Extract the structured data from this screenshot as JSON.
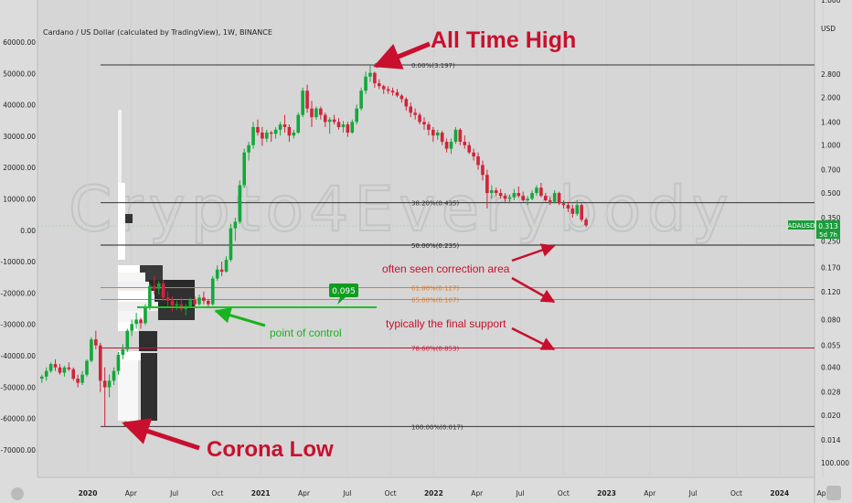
{
  "chart_data": {
    "type": "candlestick",
    "title": "Cardano / US Dollar (calculated by TradingView), 1W, BINANCE",
    "symbol": "ADAUSD",
    "last_price": "0.313",
    "countdown": "5d 7h",
    "price_axis": {
      "unit": "USD",
      "scale": "log",
      "ticks": [
        "1.000",
        "USD",
        "2.800",
        "2.000",
        "1.400",
        "1.000",
        "0.700",
        "0.500",
        "0.350",
        "0.250",
        "0.170",
        "0.120",
        "0.080",
        "0.055",
        "0.040",
        "0.028",
        "0.020",
        "0.014",
        "100.000"
      ],
      "tick_values": [
        null,
        null,
        2.8,
        2.0,
        1.4,
        1.0,
        0.7,
        0.5,
        0.35,
        0.25,
        0.17,
        0.12,
        0.08,
        0.055,
        0.04,
        0.028,
        0.02,
        0.014,
        null
      ]
    },
    "left_axis": {
      "ticks": [
        "60000.00",
        "50000.00",
        "40000.00",
        "30000.00",
        "20000.00",
        "10000.00",
        "0.00",
        "-10000.00",
        "-20000.00",
        "-30000.00",
        "-40000.00",
        "-50000.00",
        "-60000.00",
        "-70000.00"
      ],
      "range": [
        -70000,
        60000
      ]
    },
    "time_axis": {
      "ticks": [
        "2020",
        "Apr",
        "Jul",
        "Oct",
        "2021",
        "Apr",
        "Jul",
        "Oct",
        "2022",
        "Apr",
        "Jul",
        "Oct",
        "2023",
        "Apr",
        "Jul",
        "Oct",
        "2024",
        "Apr"
      ]
    },
    "fib_levels": [
      {
        "label": "0.00%(3.197)",
        "price": 3.197,
        "color": "#333333"
      },
      {
        "label": "38.20%(0.435)",
        "price": 0.435,
        "color": "#333333"
      },
      {
        "label": "50.00%(0.235)",
        "price": 0.235,
        "color": "#222222"
      },
      {
        "label": "61.80%(0.127)",
        "price": 0.127,
        "color": "#e07a2c"
      },
      {
        "label": "65.00%(0.107)",
        "price": 0.107,
        "color": "#e07a2c"
      },
      {
        "label": "78.60%(0.053)",
        "price": 0.053,
        "color": "#c8102e"
      },
      {
        "label": "100.00%(0.017)",
        "price": 0.017,
        "color": "#333333"
      }
    ],
    "poc": {
      "label": "0.095",
      "value": 0.095
    },
    "annotations": [
      "All Time High",
      "Corona Low",
      "often seen correction area",
      "typically the final support",
      "point of control"
    ],
    "watermark": "Crypto4Everybody",
    "candles": [
      [
        0,
        0.034,
        0.036,
        0.032,
        0.035
      ],
      [
        1,
        0.035,
        0.04,
        0.033,
        0.038
      ],
      [
        2,
        0.038,
        0.043,
        0.037,
        0.042
      ],
      [
        3,
        0.042,
        0.045,
        0.038,
        0.04
      ],
      [
        4,
        0.04,
        0.042,
        0.036,
        0.037
      ],
      [
        5,
        0.037,
        0.041,
        0.035,
        0.04
      ],
      [
        6,
        0.04,
        0.043,
        0.038,
        0.039
      ],
      [
        7,
        0.039,
        0.04,
        0.033,
        0.034
      ],
      [
        8,
        0.034,
        0.036,
        0.03,
        0.032
      ],
      [
        9,
        0.032,
        0.038,
        0.031,
        0.036
      ],
      [
        10,
        0.036,
        0.045,
        0.035,
        0.044
      ],
      [
        11,
        0.044,
        0.062,
        0.043,
        0.06
      ],
      [
        12,
        0.06,
        0.068,
        0.052,
        0.055
      ],
      [
        13,
        0.055,
        0.057,
        0.028,
        0.033
      ],
      [
        14,
        0.033,
        0.04,
        0.017,
        0.03
      ],
      [
        15,
        0.03,
        0.036,
        0.026,
        0.033
      ],
      [
        16,
        0.033,
        0.04,
        0.031,
        0.038
      ],
      [
        17,
        0.038,
        0.05,
        0.036,
        0.048
      ],
      [
        18,
        0.048,
        0.056,
        0.045,
        0.052
      ],
      [
        19,
        0.052,
        0.07,
        0.05,
        0.068
      ],
      [
        20,
        0.068,
        0.08,
        0.063,
        0.075
      ],
      [
        21,
        0.075,
        0.088,
        0.07,
        0.08
      ],
      [
        22,
        0.08,
        0.082,
        0.07,
        0.076
      ],
      [
        23,
        0.076,
        0.1,
        0.074,
        0.095
      ],
      [
        24,
        0.095,
        0.135,
        0.092,
        0.13
      ],
      [
        25,
        0.13,
        0.15,
        0.115,
        0.125
      ],
      [
        26,
        0.125,
        0.14,
        0.115,
        0.135
      ],
      [
        27,
        0.135,
        0.142,
        0.105,
        0.11
      ],
      [
        28,
        0.11,
        0.12,
        0.095,
        0.105
      ],
      [
        29,
        0.105,
        0.112,
        0.09,
        0.098
      ],
      [
        30,
        0.098,
        0.105,
        0.092,
        0.1
      ],
      [
        31,
        0.1,
        0.11,
        0.09,
        0.093
      ],
      [
        32,
        0.093,
        0.1,
        0.085,
        0.097
      ],
      [
        33,
        0.097,
        0.11,
        0.095,
        0.106
      ],
      [
        34,
        0.106,
        0.112,
        0.096,
        0.1
      ],
      [
        35,
        0.1,
        0.115,
        0.098,
        0.11
      ],
      [
        36,
        0.11,
        0.12,
        0.1,
        0.105
      ],
      [
        37,
        0.105,
        0.108,
        0.095,
        0.1
      ],
      [
        38,
        0.1,
        0.15,
        0.098,
        0.145
      ],
      [
        39,
        0.145,
        0.175,
        0.14,
        0.165
      ],
      [
        40,
        0.165,
        0.185,
        0.15,
        0.16
      ],
      [
        41,
        0.16,
        0.2,
        0.158,
        0.19
      ],
      [
        42,
        0.19,
        0.32,
        0.185,
        0.3
      ],
      [
        43,
        0.3,
        0.35,
        0.25,
        0.33
      ],
      [
        44,
        0.33,
        0.6,
        0.32,
        0.56
      ],
      [
        45,
        0.56,
        0.95,
        0.54,
        0.9
      ],
      [
        46,
        0.9,
        1.05,
        0.8,
        1.0
      ],
      [
        47,
        1.0,
        1.4,
        0.95,
        1.3
      ],
      [
        48,
        1.3,
        1.45,
        1.15,
        1.2
      ],
      [
        49,
        1.2,
        1.3,
        0.99,
        1.1
      ],
      [
        50,
        1.1,
        1.25,
        1.05,
        1.2
      ],
      [
        51,
        1.2,
        1.23,
        1.05,
        1.18
      ],
      [
        52,
        1.18,
        1.3,
        1.1,
        1.25
      ],
      [
        53,
        1.25,
        1.4,
        1.15,
        1.35
      ],
      [
        54,
        1.35,
        1.55,
        1.2,
        1.3
      ],
      [
        55,
        1.3,
        1.35,
        1.05,
        1.15
      ],
      [
        56,
        1.15,
        1.25,
        1.1,
        1.2
      ],
      [
        57,
        1.2,
        1.6,
        1.18,
        1.55
      ],
      [
        58,
        1.55,
        2.3,
        1.5,
        2.2
      ],
      [
        59,
        2.2,
        2.4,
        1.6,
        1.7
      ],
      [
        60,
        1.7,
        1.9,
        1.3,
        1.5
      ],
      [
        61,
        1.5,
        1.75,
        1.45,
        1.7
      ],
      [
        62,
        1.7,
        1.75,
        1.45,
        1.55
      ],
      [
        63,
        1.55,
        1.6,
        1.3,
        1.4
      ],
      [
        64,
        1.4,
        1.5,
        1.18,
        1.45
      ],
      [
        65,
        1.45,
        1.55,
        1.35,
        1.4
      ],
      [
        66,
        1.4,
        1.48,
        1.25,
        1.3
      ],
      [
        67,
        1.3,
        1.42,
        1.2,
        1.35
      ],
      [
        68,
        1.35,
        1.4,
        1.13,
        1.2
      ],
      [
        69,
        1.2,
        1.45,
        1.18,
        1.4
      ],
      [
        70,
        1.4,
        1.8,
        1.35,
        1.7
      ],
      [
        71,
        1.7,
        2.3,
        1.65,
        2.2
      ],
      [
        72,
        2.2,
        2.9,
        2.1,
        2.7
      ],
      [
        73,
        2.7,
        3.197,
        2.5,
        2.85
      ],
      [
        74,
        2.85,
        2.9,
        2.3,
        2.45
      ],
      [
        75,
        2.45,
        2.6,
        2.25,
        2.35
      ],
      [
        76,
        2.35,
        2.4,
        2.1,
        2.25
      ],
      [
        77,
        2.25,
        2.35,
        2.1,
        2.2
      ],
      [
        78,
        2.2,
        2.3,
        2.05,
        2.15
      ],
      [
        79,
        2.15,
        2.25,
        2.0,
        2.05
      ],
      [
        80,
        2.05,
        2.1,
        1.85,
        1.95
      ],
      [
        81,
        1.95,
        2.0,
        1.65,
        1.75
      ],
      [
        82,
        1.75,
        1.85,
        1.5,
        1.6
      ],
      [
        83,
        1.6,
        1.7,
        1.45,
        1.55
      ],
      [
        84,
        1.55,
        1.6,
        1.35,
        1.4
      ],
      [
        85,
        1.4,
        1.5,
        1.25,
        1.35
      ],
      [
        86,
        1.35,
        1.4,
        1.15,
        1.25
      ],
      [
        87,
        1.25,
        1.3,
        1.05,
        1.15
      ],
      [
        88,
        1.15,
        1.25,
        1.08,
        1.2
      ],
      [
        89,
        1.2,
        1.23,
        1.0,
        1.05
      ],
      [
        90,
        1.05,
        1.1,
        0.9,
        0.95
      ],
      [
        91,
        0.95,
        1.1,
        0.88,
        1.05
      ],
      [
        92,
        1.05,
        1.3,
        1.02,
        1.25
      ],
      [
        93,
        1.25,
        1.28,
        1.0,
        1.05
      ],
      [
        94,
        1.05,
        1.15,
        0.95,
        1.0
      ],
      [
        95,
        1.0,
        1.05,
        0.88,
        0.9
      ],
      [
        96,
        0.9,
        0.95,
        0.8,
        0.85
      ],
      [
        97,
        0.85,
        0.9,
        0.7,
        0.75
      ],
      [
        98,
        0.75,
        0.8,
        0.6,
        0.65
      ],
      [
        99,
        0.65,
        0.7,
        0.4,
        0.5
      ],
      [
        100,
        0.5,
        0.56,
        0.46,
        0.52
      ],
      [
        101,
        0.52,
        0.54,
        0.48,
        0.5
      ],
      [
        102,
        0.5,
        0.53,
        0.46,
        0.48
      ],
      [
        103,
        0.48,
        0.5,
        0.44,
        0.46
      ],
      [
        104,
        0.46,
        0.49,
        0.43,
        0.47
      ],
      [
        105,
        0.47,
        0.53,
        0.45,
        0.5
      ],
      [
        106,
        0.5,
        0.55,
        0.47,
        0.48
      ],
      [
        107,
        0.48,
        0.51,
        0.44,
        0.45
      ],
      [
        108,
        0.45,
        0.48,
        0.42,
        0.46
      ],
      [
        109,
        0.46,
        0.52,
        0.45,
        0.5
      ],
      [
        110,
        0.5,
        0.56,
        0.48,
        0.54
      ],
      [
        111,
        0.54,
        0.58,
        0.47,
        0.48
      ],
      [
        112,
        0.48,
        0.5,
        0.44,
        0.45
      ],
      [
        113,
        0.45,
        0.47,
        0.42,
        0.44
      ],
      [
        114,
        0.44,
        0.52,
        0.43,
        0.5
      ],
      [
        115,
        0.5,
        0.51,
        0.42,
        0.43
      ],
      [
        116,
        0.43,
        0.45,
        0.4,
        0.42
      ],
      [
        117,
        0.42,
        0.44,
        0.38,
        0.4
      ],
      [
        118,
        0.4,
        0.42,
        0.35,
        0.37
      ],
      [
        119,
        0.37,
        0.45,
        0.36,
        0.42
      ],
      [
        120,
        0.42,
        0.43,
        0.33,
        0.34
      ],
      [
        121,
        0.34,
        0.35,
        0.305,
        0.313
      ]
    ]
  },
  "right_axis_label": "USD"
}
